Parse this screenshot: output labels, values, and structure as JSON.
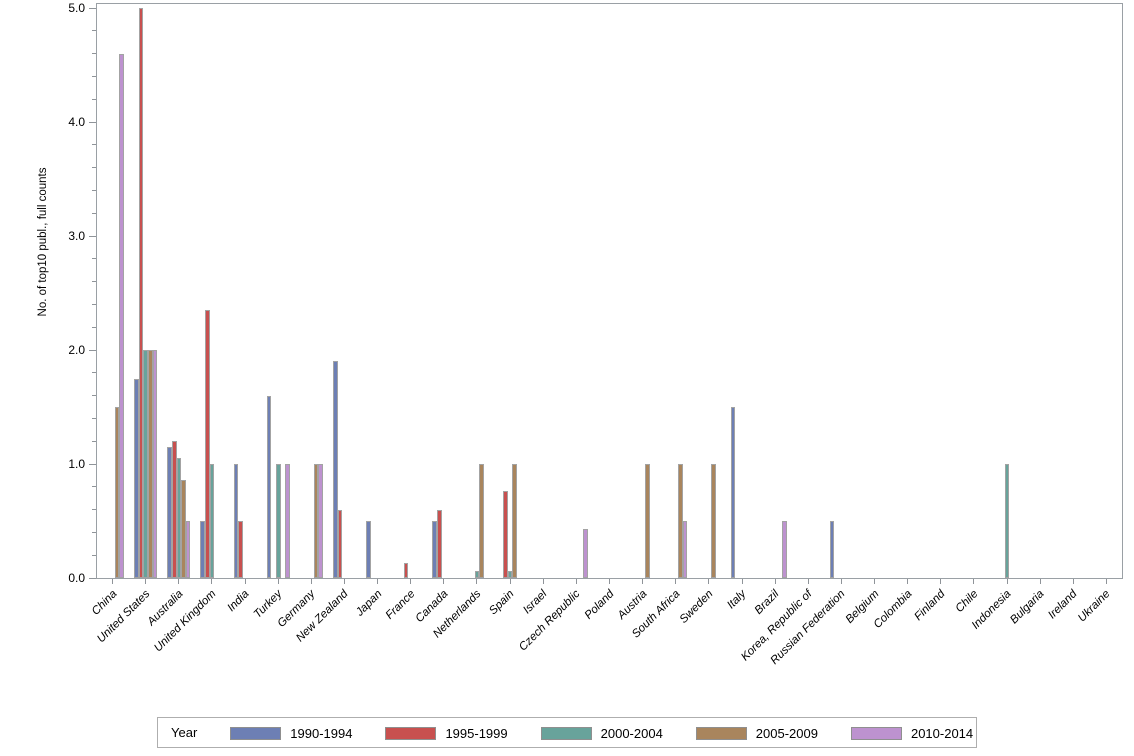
{
  "chart_data": {
    "type": "bar",
    "title": "",
    "xlabel": "",
    "ylabel": "No. of top10 publ., full counts",
    "ylim": [
      0.0,
      5.0
    ],
    "ytick_labels": [
      "0.0",
      "1.0",
      "2.0",
      "3.0",
      "4.0",
      "5.0"
    ],
    "yminor_step": 0.2,
    "grid": "off",
    "legend_position": "bottom",
    "legend_title": "Year",
    "categories": [
      "China",
      "United States",
      "Australia",
      "United Kingdom",
      "India",
      "Turkey",
      "Germany",
      "New Zealand",
      "Japan",
      "France",
      "Canada",
      "Netherlands",
      "Spain",
      "Israel",
      "Czech Republic",
      "Poland",
      "Austria",
      "South Africa",
      "Sweden",
      "Italy",
      "Brazil",
      "Korea, Republic of",
      "Russian Federation",
      "Belgium",
      "Colombia",
      "Finland",
      "Chile",
      "Indonesia",
      "Bulgaria",
      "Ireland",
      "Ukraine"
    ],
    "series": [
      {
        "name": "1990-1994",
        "color": "#6d7fb4",
        "values": [
          0,
          1.75,
          1.15,
          0.5,
          1.0,
          1.6,
          0,
          1.9,
          0.5,
          0,
          0.5,
          0,
          0,
          0,
          0,
          0,
          0,
          0,
          0,
          1.5,
          0,
          0,
          0.5,
          0,
          0,
          0,
          0,
          0,
          0,
          0,
          0
        ]
      },
      {
        "name": "1995-1999",
        "color": "#c8504f",
        "values": [
          0,
          5.0,
          1.2,
          2.35,
          0.5,
          0,
          0,
          0.6,
          0,
          0.13,
          0.6,
          0,
          0.76,
          0,
          0,
          0,
          0,
          0,
          0,
          0,
          0,
          0,
          0,
          0,
          0,
          0,
          0,
          0,
          0,
          0,
          0
        ]
      },
      {
        "name": "2000-2004",
        "color": "#68a39b",
        "values": [
          0,
          2.0,
          1.05,
          1.0,
          0,
          1.0,
          0,
          0,
          0,
          0,
          0,
          0.06,
          0.06,
          0,
          0,
          0,
          0,
          0,
          0,
          0,
          0,
          0,
          0,
          0,
          0,
          0,
          0,
          1.0,
          0,
          0,
          0
        ]
      },
      {
        "name": "2005-2009",
        "color": "#a9855d",
        "values": [
          1.5,
          2.0,
          0.86,
          0,
          0,
          0,
          1.0,
          0,
          0,
          0,
          0,
          1.0,
          1.0,
          0,
          0,
          0,
          1.0,
          1.0,
          1.0,
          0,
          0,
          0,
          0,
          0,
          0,
          0,
          0,
          0,
          0,
          0,
          0
        ]
      },
      {
        "name": "2010-2014",
        "color": "#bd92cf",
        "values": [
          4.6,
          2.0,
          0.5,
          0,
          0,
          1.0,
          1.0,
          0,
          0,
          0,
          0,
          0,
          0,
          0,
          0.43,
          0,
          0,
          0.5,
          0,
          0,
          0.5,
          0,
          0,
          0,
          0,
          0,
          0,
          0,
          0,
          0,
          0
        ]
      }
    ]
  }
}
